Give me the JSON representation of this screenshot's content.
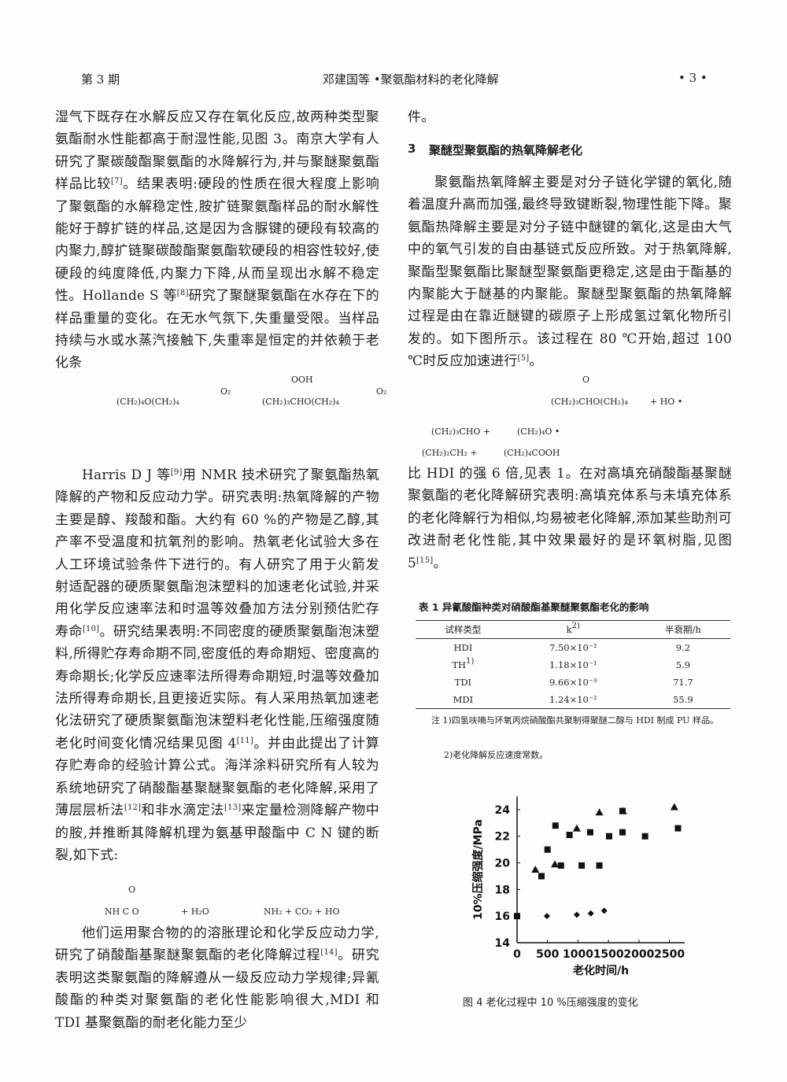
{
  "header": {
    "left": "第 3 期",
    "center": "邓建国等 •聚氨酯材料的老化降解",
    "right": "• 3 •"
  },
  "left_column": {
    "p1": [
      "湿气下既存在水解反应又存在氧化反应,故两种类型聚氨酯耐水性能都高于耐湿性能,见图 3。南京大学有人研究了聚碳酸酯聚氨酯的水降解行为,并与聚醚聚氨酯样品比较",
      {
        "sup": "[7]"
      },
      "。结果表明:硬段的性质在很大程度上影响了聚氨酯的水解稳定性,胺扩链聚氨酯样品的耐水解性能好于醇扩链的样品,这是因为含脲键的硬段有较高的内聚力,醇扩链聚碳酸酯聚氨酯软硬段的相容性较好,使硬段的纯度降低,内聚力下降,从而呈现出水解不稳定性。Hollande S 等",
      {
        "sup": "[8]"
      },
      "研究了聚醚聚氨酯在水存在下的样品重量的变化。在无水气氛下,失重量受限。当样品持续与水或水蒸汽接触下,失重率是恒定的并依赖于老化条"
    ],
    "equation1": [
      "OOH",
      "O₂",
      "(CH₂)₄O(CH₂)₄",
      "(CH₂)₃CHO(CH₂)₄",
      "O₂"
    ],
    "p2": [
      "Harris D J 等",
      {
        "sup": "[9]"
      },
      "用 NMR 技术研究了聚氨酯热氧降解的产物和反应动力学。研究表明:热氧降解的产物主要是醇、羧酸和酯。大约有 60 %的产物是乙醇,其产率不受温度和抗氧剂的影响。热氧老化试验大多在人工环境试验条件下进行的。有人研究了用于火箭发射适配器的硬质聚氨酯泡沫塑料的加速老化试验,并采用化学反应速率法和时温等效叠加方法分别预估贮存寿命",
      {
        "sup": "[10]"
      },
      "。研究结果表明:不同密度的硬质聚氨酯泡沫塑料,所得贮存寿命期不同,密度低的寿命期短、密度高的寿命期长;化学反应速率法所得寿命期短,时温等效叠加法所得寿命期长,且更接近实际。有人采用热氧加速老化法研究了硬质聚氨酯泡沫塑料老化性能,压缩强度随老化时间变化情况结果见图 4",
      {
        "sup": "[11]"
      },
      "。并由此提出了计算存贮寿命的经验计算公式。海洋涂料研究所有人较为系统地研究了硝酸酯基聚醚聚氨酯的老化降解,采用了薄层层析法",
      {
        "sup": "[12]"
      },
      "和非水滴定法",
      {
        "sup": "[13]"
      },
      "来定量检测降解产物中的胺,并推断其降解机理为氨基甲酸酯中 C N 键的断裂,如下式:"
    ],
    "equation2": [
      "O",
      "NH C O",
      "+ H₂O",
      "NH₂ + CO₂ + HO"
    ],
    "p3": [
      "他们运用聚合物的的溶胀理论和化学反应动力学,研究了硝酸酯基聚醚聚氨酯的老化降解过程",
      {
        "sup": "[14]"
      },
      "。研究表明这类聚氨酯的降解遵从一级反应动力学规律;异氰酸酯的种类对聚氨酯的老化性能影响很大,MDI 和 TDI 基聚氨酯的耐老化能力至少"
    ]
  },
  "right_column": {
    "p0": [
      "件。"
    ],
    "section": {
      "number": "3",
      "title": "聚醚型聚氨酯的热氧降解老化"
    },
    "p1": [
      "聚氨酯热氧降解主要是对分子链化学键的氧化,随着温度升高而加强,最终导致键断裂,物理性能下降。聚氨酯热降解主要是对分子链中醚键的氧化,这是由大气中的氧气引发的自由基链式反应所致。对于热氧降解,聚酯型聚氨酯比聚醚型聚氨酯更稳定,这是由于酯基的内聚能大于醚基的内聚能。聚醚型聚氨酯的热氧降解过程是由在靠近醚键的碳原子上形成氢过氧化物所引发的。如下图所示。该过程在 80 ℃开始,超过 100 ℃时反应加速进行",
      {
        "sup": "[5]"
      },
      "。"
    ],
    "equation3": [
      "O",
      "(CH₂)₃CHO(CH₂)₄",
      "+ HO •",
      "(CH₂)₃CHO +",
      "(CH₂)₄O •",
      "(CH₂)₂CH₂ +",
      "(CH₂)₄COOH"
    ],
    "p2": [
      "比 HDI 的强 6 倍,见表 1。在对高填充硝酸酯基聚醚聚氨酯的老化降解研究表明:高填充体系与未填充体系的老化降解行为相似,均易被老化降解,添加某些助剂可改进耐老化性能,其中效果最好的是环氧树脂,见图 5",
      {
        "sup": "[15]"
      },
      "。"
    ],
    "table": {
      "title": "表 1 异氰酸酯种类对硝酸酯基聚醚聚氨酯老化的影响",
      "header": [
        [
          "试样类型"
        ],
        [
          "k",
          {
            "sup": "2)"
          }
        ],
        [
          "半衰期/h"
        ]
      ],
      "rows": [
        [
          [
            "HDI"
          ],
          [
            "7.50×10⁻²"
          ],
          [
            "9.2"
          ]
        ],
        [
          [
            "TH",
            {
              "sup": "1)"
            }
          ],
          [
            "1.18×10⁻¹"
          ],
          [
            "5.9"
          ]
        ],
        [
          [
            "TDI"
          ],
          [
            "9.66×10⁻³"
          ],
          [
            "71.7"
          ]
        ],
        [
          [
            "MDI"
          ],
          [
            "1.24×10⁻²"
          ],
          [
            "55.9"
          ]
        ]
      ],
      "notes": [
        "注 1)四氢呋喃与环氧丙烷硝酸酯共聚制得聚醚二醇与 HDI 制成 PU 样品。",
        "2)老化降解反应速度常数。"
      ]
    },
    "figure_caption": "图 4 老化过程中 10 %压缩强度的变化"
  },
  "chart_data": {
    "type": "scatter",
    "x_label": "老化时间/h",
    "y_label": "10%压缩强度/MPa",
    "xlim": [
      0,
      2750
    ],
    "xticks": [
      0,
      500,
      1000,
      1500,
      2000,
      2500
    ],
    "ylim": [
      14,
      25
    ],
    "yticks": [
      14,
      16,
      18,
      20,
      22,
      24
    ],
    "series": [
      {
        "marker": "square",
        "color": "#111111",
        "x": [
          0,
          400,
          500,
          630,
          720,
          860,
          1060,
          1200,
          1350,
          1510,
          1730,
          1730,
          2100,
          2640
        ],
        "values": [
          16,
          19,
          21,
          22.8,
          19.8,
          22.1,
          19.8,
          22.3,
          19.8,
          22,
          23.9,
          22.3,
          22,
          22.6
        ]
      },
      {
        "marker": "triangle",
        "color": "#111111",
        "x": [
          300,
          620,
          980,
          1350,
          1740,
          2580
        ],
        "values": [
          19.5,
          19.9,
          22.6,
          23.8,
          23.9,
          24.2
        ]
      },
      {
        "marker": "diamond",
        "color": "#111111",
        "x": [
          490,
          980,
          1210,
          1430
        ],
        "values": [
          16,
          16.1,
          16.2,
          16.4
        ]
      }
    ]
  }
}
